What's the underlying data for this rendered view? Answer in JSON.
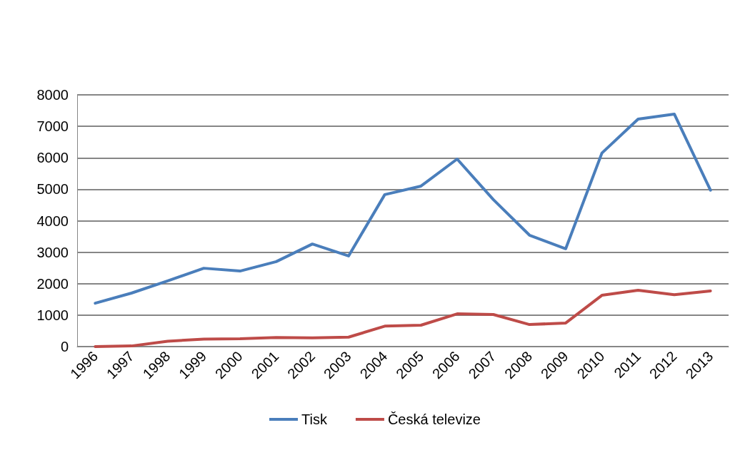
{
  "chart_data": {
    "type": "line",
    "categories": [
      "1996",
      "1997",
      "1998",
      "1999",
      "2000",
      "2001",
      "2002",
      "2003",
      "2004",
      "2005",
      "2006",
      "2007",
      "2008",
      "2009",
      "2010",
      "2011",
      "2012",
      "2013"
    ],
    "series": [
      {
        "name": "Tisk",
        "color": "#4a7ebb",
        "values": [
          1380,
          1700,
          2090,
          2490,
          2400,
          2700,
          3260,
          2880,
          4830,
          5100,
          5960,
          4670,
          3540,
          3110,
          6150,
          7230,
          7390,
          4970
        ]
      },
      {
        "name": "Česká televize",
        "color": "#be4b48",
        "values": [
          0,
          20,
          170,
          240,
          250,
          290,
          280,
          300,
          650,
          680,
          1040,
          1020,
          700,
          750,
          1630,
          1790,
          1650,
          1770
        ]
      }
    ],
    "ylim": [
      0,
      8000
    ],
    "yticks": [
      0,
      1000,
      2000,
      3000,
      4000,
      5000,
      6000,
      7000,
      8000
    ],
    "grid": "y",
    "legend": "bottom",
    "marker": "none",
    "line_style": "solid"
  }
}
